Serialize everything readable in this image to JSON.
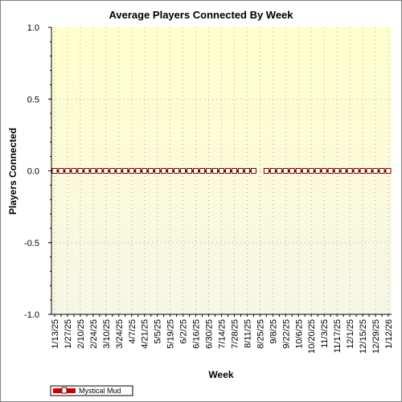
{
  "chart_data": {
    "type": "line",
    "title": "Average Players Connected By Week",
    "xlabel": "Week",
    "ylabel": "Players Connected",
    "ylim": [
      -1.0,
      1.0
    ],
    "y_ticks": [
      "1.0",
      "0.5",
      "0.0",
      "-0.5",
      "-1.0"
    ],
    "y_tick_values": [
      1.0,
      0.5,
      0.0,
      -0.5,
      -1.0
    ],
    "x_tick_labels": [
      "1/13/25",
      "1/27/25",
      "2/10/25",
      "2/24/25",
      "3/10/25",
      "3/24/25",
      "4/7/25",
      "4/21/25",
      "5/5/25",
      "5/19/25",
      "6/2/25",
      "6/16/25",
      "6/30/25",
      "7/14/25",
      "7/28/25",
      "8/11/25",
      "8/25/25",
      "9/8/25",
      "9/22/25",
      "10/6/25",
      "10/20/25",
      "11/3/25",
      "11/17/25",
      "12/1/25",
      "12/15/25",
      "12/29/25",
      "1/12/26"
    ],
    "x": [
      "1/13/25",
      "1/20/25",
      "1/27/25",
      "2/3/25",
      "2/10/25",
      "2/17/25",
      "2/24/25",
      "3/3/25",
      "3/10/25",
      "3/17/25",
      "3/24/25",
      "3/31/25",
      "4/7/25",
      "4/14/25",
      "4/21/25",
      "4/28/25",
      "5/5/25",
      "5/12/25",
      "5/19/25",
      "5/26/25",
      "6/2/25",
      "6/9/25",
      "6/16/25",
      "6/23/25",
      "6/30/25",
      "7/7/25",
      "7/14/25",
      "7/21/25",
      "7/28/25",
      "8/4/25",
      "8/11/25",
      "8/18/25",
      "8/25/25",
      "9/1/25",
      "9/8/25",
      "9/15/25",
      "9/22/25",
      "9/29/25",
      "10/6/25",
      "10/13/25",
      "10/20/25",
      "10/27/25",
      "11/3/25",
      "11/10/25",
      "11/17/25",
      "11/24/25",
      "12/1/25",
      "12/8/25",
      "12/15/25",
      "12/22/25",
      "12/29/25",
      "1/5/26",
      "1/12/26"
    ],
    "series": [
      {
        "name": "Mystical Mud",
        "color": "#cc0000",
        "values": [
          0,
          0,
          0,
          0,
          0,
          0,
          0,
          0,
          0,
          0,
          0,
          0,
          0,
          0,
          0,
          0,
          0,
          0,
          0,
          0,
          0,
          0,
          0,
          0,
          0,
          0,
          0,
          0,
          0,
          0,
          0,
          0,
          null,
          0,
          0,
          0,
          0,
          0,
          0,
          0,
          0,
          0,
          0,
          0,
          0,
          0,
          0,
          0,
          0,
          0,
          0,
          0,
          0
        ]
      }
    ],
    "grid": true,
    "legend_position": "bottom-left",
    "colors": {
      "plot_background_top": "#ffffcc",
      "plot_background_bottom": "#f6f6e6",
      "grid": "#b0b0b0",
      "line": "#7a0000",
      "marker": "#cc0000"
    }
  }
}
